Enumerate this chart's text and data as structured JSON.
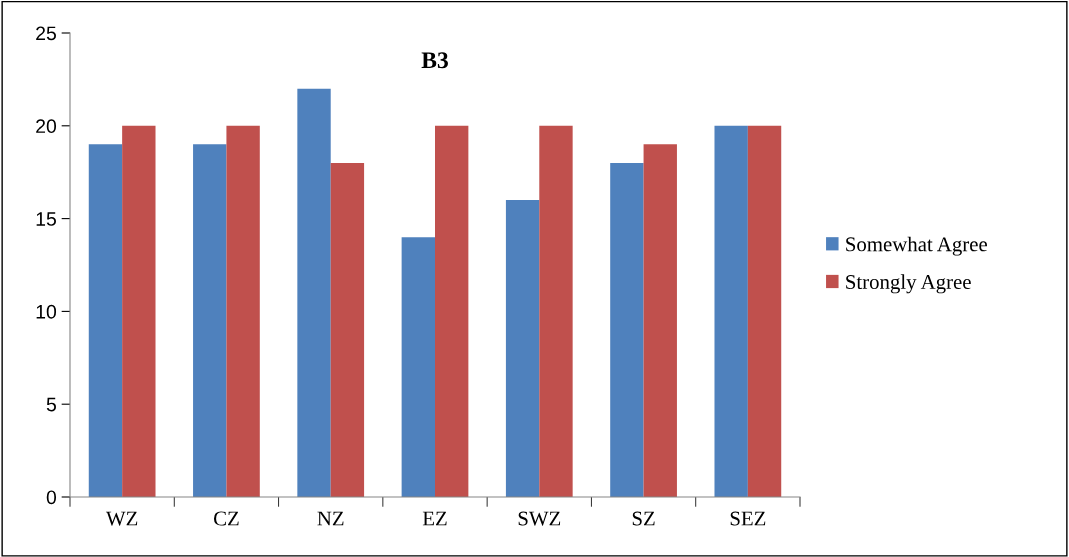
{
  "chart_data": {
    "type": "bar",
    "title": "B3",
    "categories": [
      "WZ",
      "CZ",
      "NZ",
      "EZ",
      "SWZ",
      "SZ",
      "SEZ"
    ],
    "series": [
      {
        "name": "Somewhat Agree",
        "color": "#4f81bd",
        "values": [
          19,
          19,
          22,
          14,
          16,
          18,
          20
        ]
      },
      {
        "name": "Strongly Agree",
        "color": "#c0504d",
        "values": [
          20,
          20,
          18,
          20,
          20,
          19,
          20
        ]
      }
    ],
    "ylim": [
      0,
      25
    ],
    "yticks": [
      0,
      5,
      10,
      15,
      20,
      25
    ],
    "grid": false,
    "legend": "right"
  }
}
